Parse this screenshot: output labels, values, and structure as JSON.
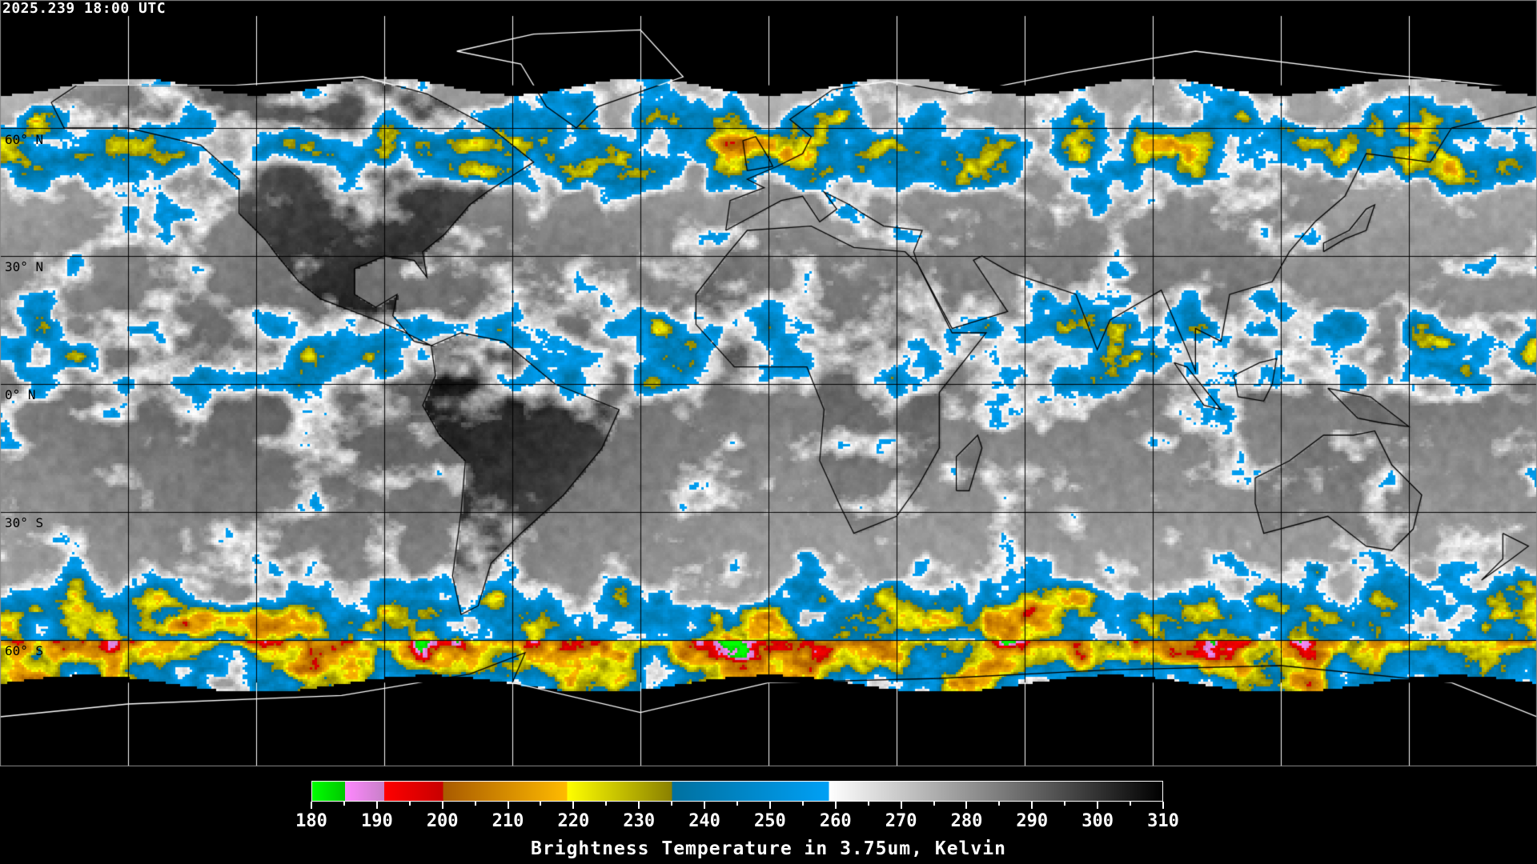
{
  "timestamp": "2025.239 18:00 UTC",
  "map": {
    "projection": "equirectangular",
    "lon_range": [
      -180,
      180
    ],
    "lat_range": [
      -90,
      90
    ],
    "grid_spacing_deg": 30,
    "data_coverage_lat": [
      -70,
      70
    ],
    "lat_labels": [
      {
        "lat": 60,
        "text": "60° N"
      },
      {
        "lat": 30,
        "text": "30° N"
      },
      {
        "lat": 0,
        "text": "0° N"
      },
      {
        "lat": -30,
        "text": "30° S"
      },
      {
        "lat": -60,
        "text": "60° S"
      }
    ]
  },
  "colorbar": {
    "title": "Brightness Temperature in 3.75um, Kelvin",
    "min": 180,
    "max": 310,
    "tick_labels": [
      "180",
      "190",
      "200",
      "210",
      "220",
      "230",
      "240",
      "250",
      "260",
      "270",
      "280",
      "290",
      "300",
      "310"
    ],
    "segments": [
      {
        "from": 180,
        "to": 185,
        "start": "#00ff00",
        "end": "#00c800"
      },
      {
        "from": 185,
        "to": 191,
        "start": "#ff88ff",
        "end": "#c880c8"
      },
      {
        "from": 191,
        "to": 200,
        "start": "#ff0000",
        "end": "#c80000"
      },
      {
        "from": 200,
        "to": 219,
        "start": "#a85a00",
        "end": "#ffbb00"
      },
      {
        "from": 219,
        "to": 235,
        "start": "#ffff00",
        "end": "#8a8000"
      },
      {
        "from": 235,
        "to": 259,
        "start": "#00709f",
        "end": "#00a0f5"
      },
      {
        "from": 259,
        "to": 310,
        "start": "#ffffff",
        "end": "#000000"
      }
    ]
  }
}
